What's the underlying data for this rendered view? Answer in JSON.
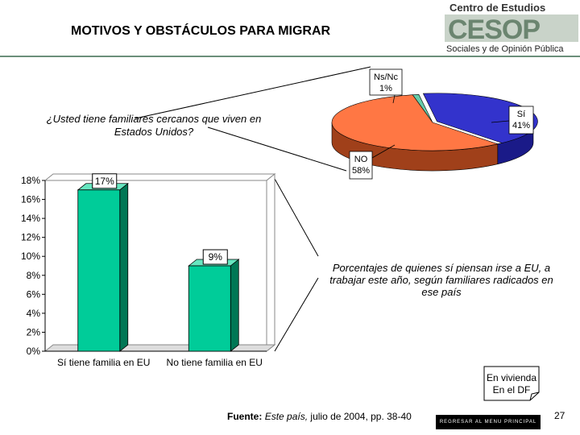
{
  "header": {
    "title": "MOTIVOS Y OBSTÁCULOS PARA MIGRAR",
    "logo_line1": "Centro de Estudios",
    "logo_mark": "CESOP",
    "logo_line2": "Sociales y de Opinión Pública"
  },
  "question": "¿Usted tiene familiares cercanos que viven en Estados Unidos?",
  "note": "Porcentajes de quienes sí piensan irse a EU, a trabajar este año, según familiares radicados en ese país",
  "callout": "En vivienda En el DF",
  "source": {
    "label": "Fuente:",
    "italic": "Este país,",
    "rest": " julio de 2004, pp. 38-40"
  },
  "menu_button": "REGRESAR AL MENU PRINCIPAL",
  "page_number": "27",
  "colors": {
    "bar": "#00cc99",
    "bar_side": "#007755",
    "pie_si": "#3333cc",
    "pie_no": "#ff7744",
    "pie_nsnc": "#66ccaa"
  },
  "chart_data": [
    {
      "type": "pie",
      "title": "",
      "slices": [
        {
          "label": "Sí",
          "value": 41,
          "display": "41%"
        },
        {
          "label": "NO",
          "value": 58,
          "display": "58%"
        },
        {
          "label": "Ns/Nc",
          "value": 1,
          "display": "1%"
        }
      ]
    },
    {
      "type": "bar",
      "categories": [
        "Sí tiene familia en EU",
        "No tiene familia en EU"
      ],
      "values": [
        17,
        9
      ],
      "data_labels": [
        "17%",
        "9%"
      ],
      "yticks": [
        "0%",
        "2%",
        "4%",
        "6%",
        "8%",
        "10%",
        "12%",
        "14%",
        "16%",
        "18%"
      ],
      "ylim": [
        0,
        18
      ],
      "xlabel": "",
      "ylabel": "",
      "grid": false
    }
  ]
}
